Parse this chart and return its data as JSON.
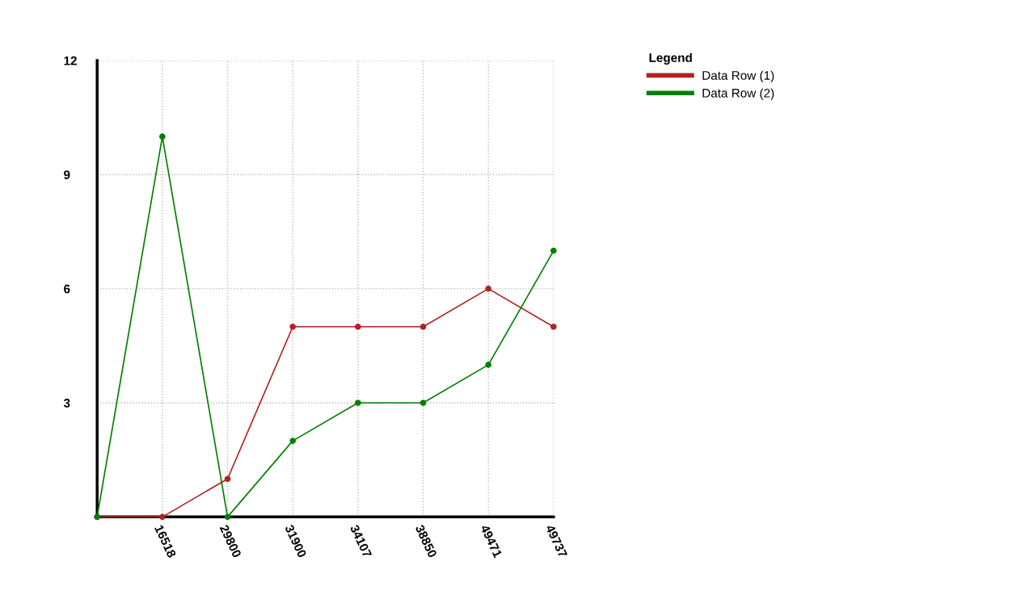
{
  "chart_data": {
    "type": "line",
    "legend_title": "Legend",
    "categories": [
      null,
      "16518",
      "29800",
      "31900",
      "34107",
      "38850",
      "49471",
      "49737"
    ],
    "series": [
      {
        "name": "Data Row (1)",
        "color": "#b22222",
        "values": [
          0,
          0,
          1,
          5,
          5,
          5,
          6,
          5
        ]
      },
      {
        "name": "Data Row (2)",
        "color": "#008000",
        "values": [
          0,
          10,
          0,
          2,
          3,
          3,
          4,
          7
        ]
      }
    ],
    "ylim": [
      0,
      12
    ],
    "yticks": [
      3,
      6,
      9,
      12
    ],
    "grid": true,
    "legend": "top right",
    "marker": "circle",
    "line_style": "solid"
  }
}
